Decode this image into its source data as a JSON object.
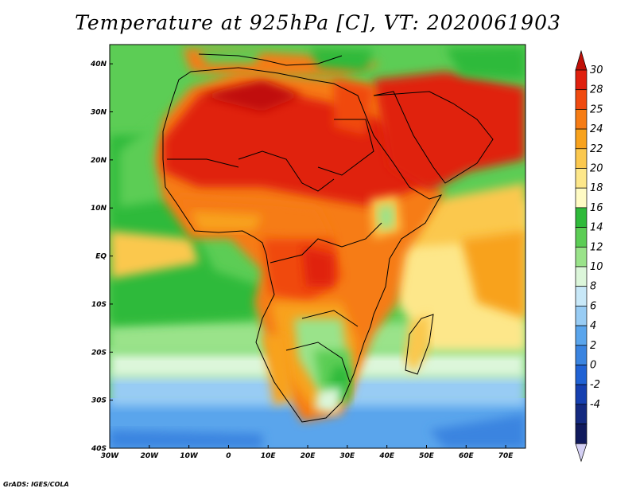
{
  "title": "Temperature at 925hPa [C], VT: 2020061903",
  "credit": "GrADS: IGES/COLA",
  "map": {
    "lon_range": [
      -30,
      75
    ],
    "lat_range": [
      -40,
      44
    ],
    "lon_ticks": [
      "30W",
      "20W",
      "10W",
      "0",
      "10E",
      "20E",
      "30E",
      "40E",
      "50E",
      "60E",
      "70E"
    ],
    "lat_ticks": [
      "40N",
      "30N",
      "20N",
      "10N",
      "EQ",
      "10S",
      "20S",
      "30S",
      "40S"
    ],
    "variable": "Temperature at 925hPa",
    "units": "C",
    "valid_time": "2020061903"
  },
  "colorbar": {
    "labels": [
      "30",
      "28",
      "25",
      "24",
      "22",
      "20",
      "18",
      "16",
      "14",
      "12",
      "10",
      "8",
      "6",
      "4",
      "2",
      "0",
      "-2",
      "-4"
    ],
    "colors": [
      "#e0200e",
      "#f04a10",
      "#f67c14",
      "#f8a21c",
      "#fbc84e",
      "#fde78a",
      "#fffbc4",
      "#2fba3a",
      "#5ccd55",
      "#9ae38a",
      "#dcf6da",
      "#c8e8f8",
      "#98ccf4",
      "#5aa5ec",
      "#3a84e0",
      "#2062d4",
      "#1640b0",
      "#142a80",
      "#101a5c"
    ],
    "top_arrow_color": "#c01008",
    "bottom_arrow_color": "#d4d0f4"
  }
}
